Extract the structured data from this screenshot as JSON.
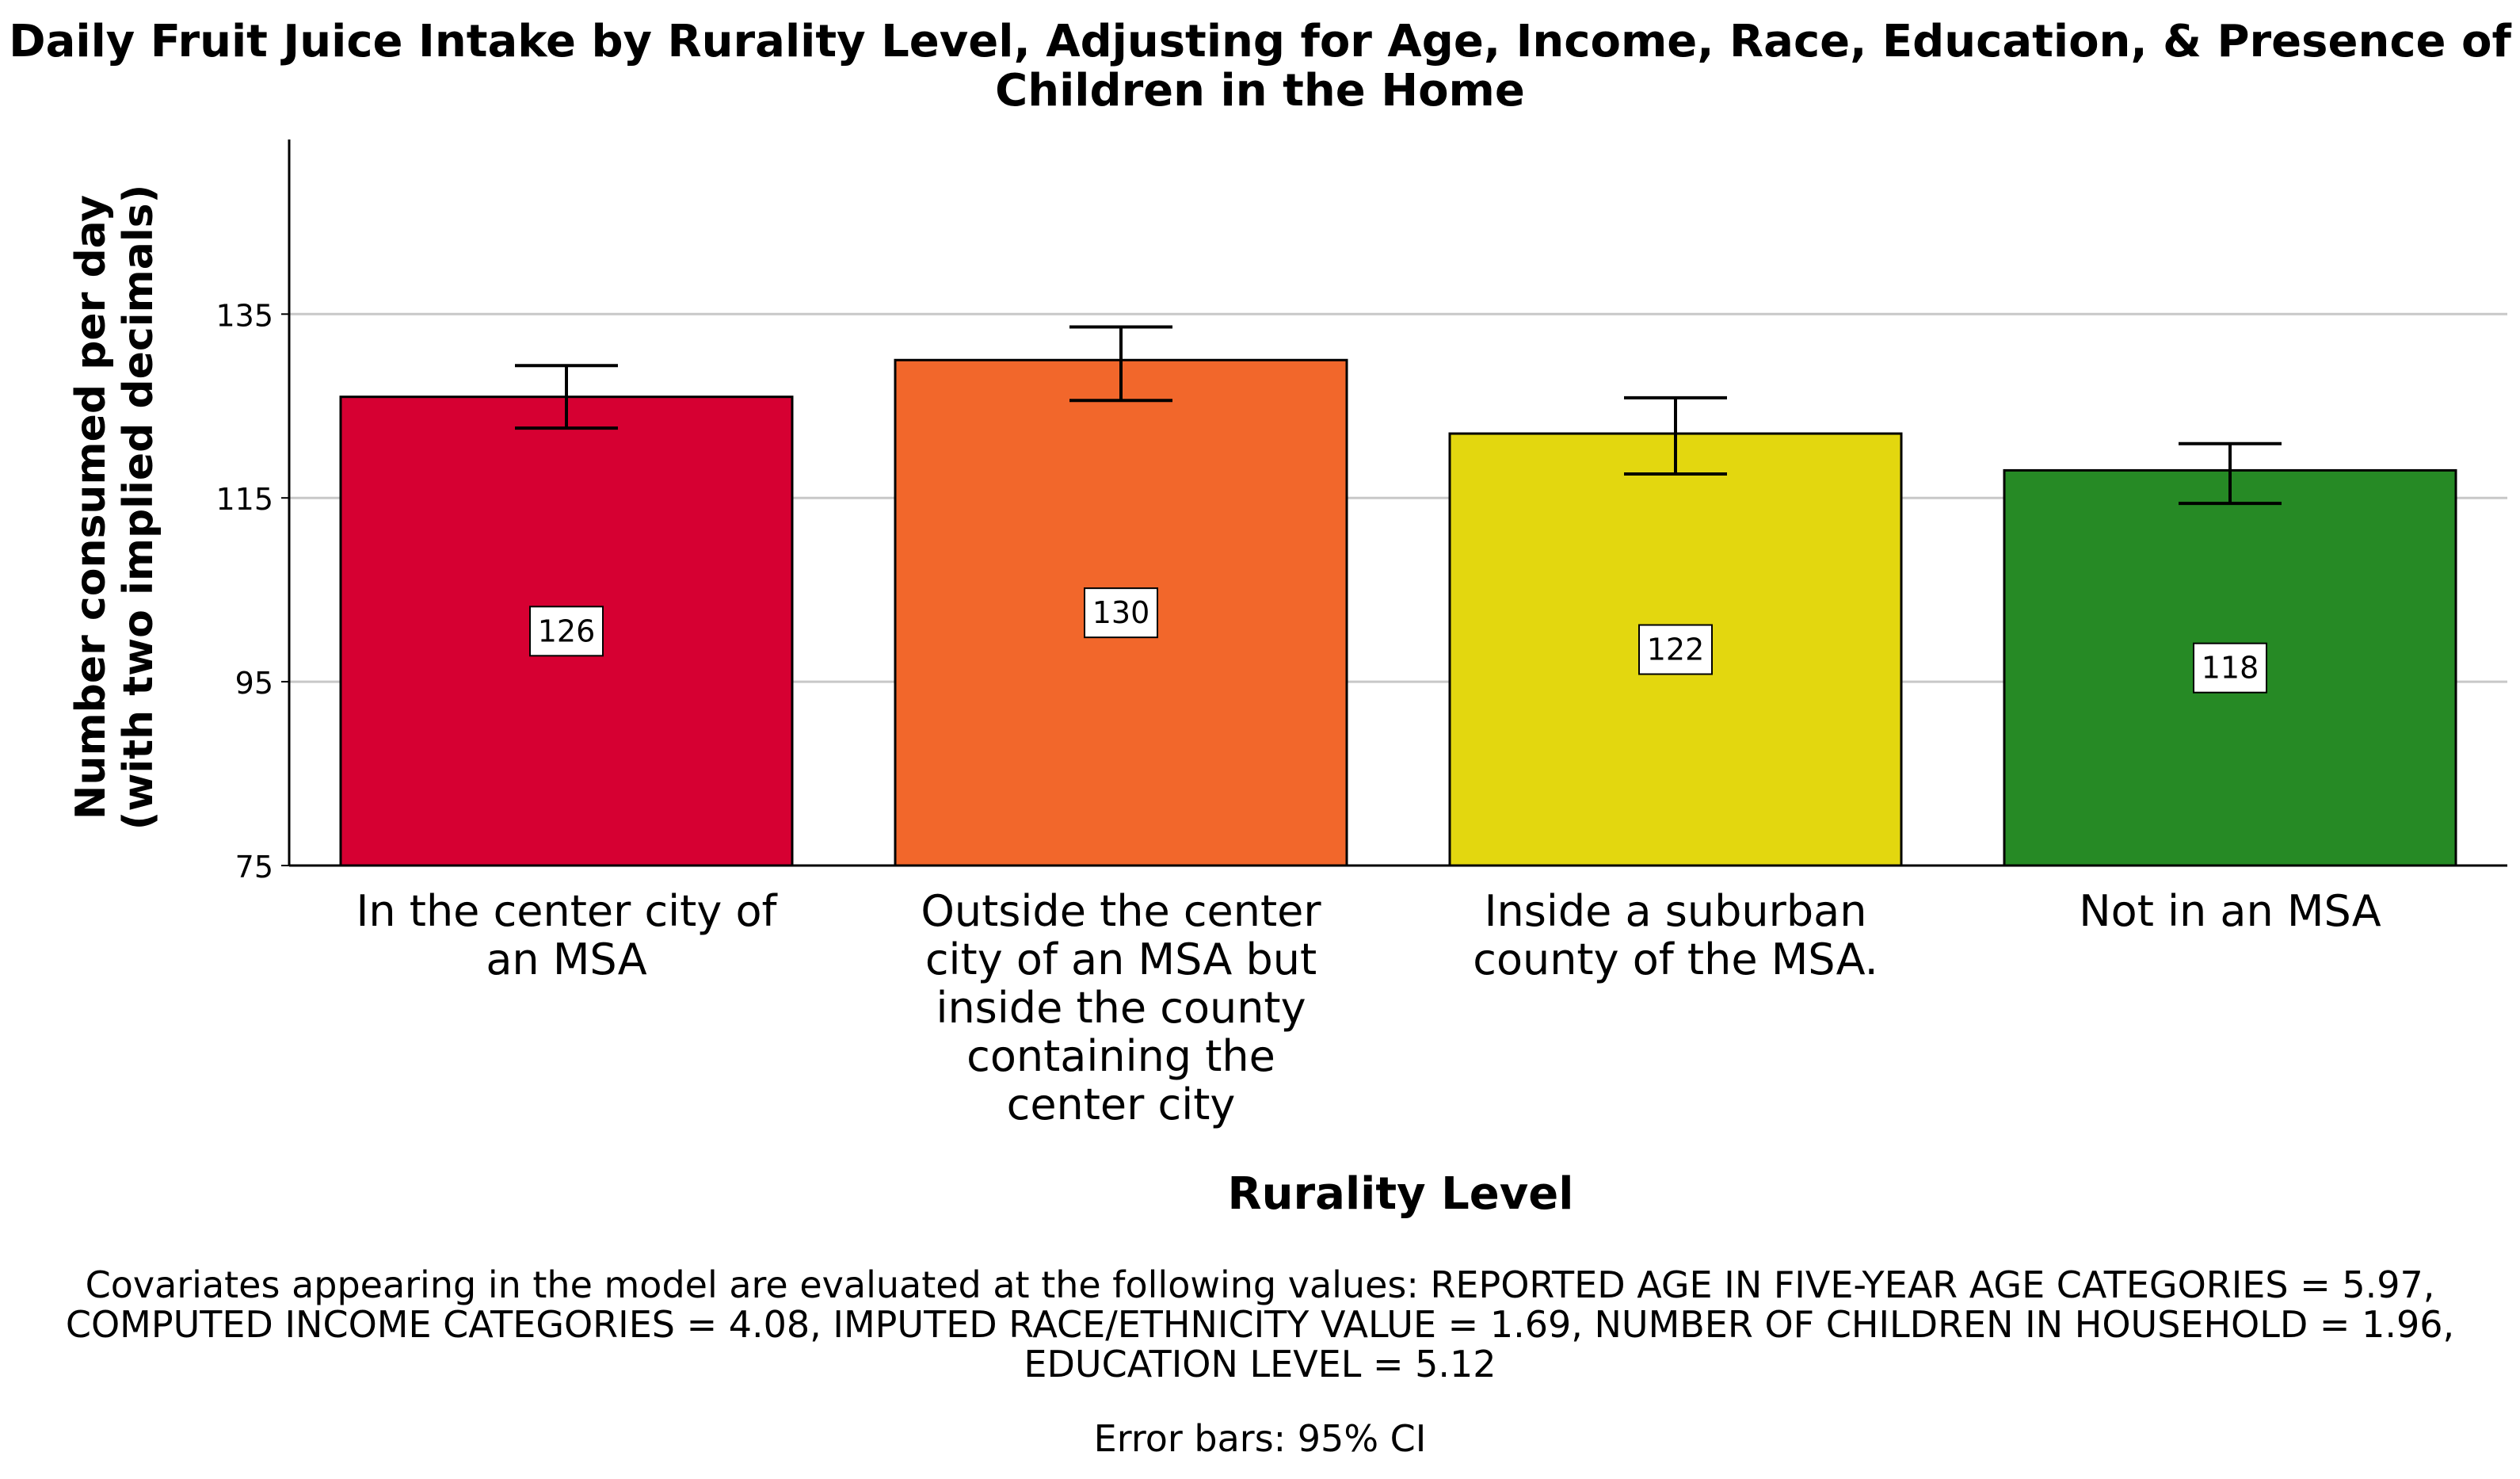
{
  "chart_data": {
    "type": "bar",
    "title_lines": [
      "Daily Fruit Juice Intake by Rurality Level, Adjusting for Age, Income, Race, Education, & Presence of",
      "Children in the Home"
    ],
    "ylabel_lines": [
      "Number consumed per day",
      "(with two implied decimals)"
    ],
    "xlabel": "Rurality Level",
    "ylim": [
      75,
      154
    ],
    "yticks": [
      75,
      95,
      115,
      135
    ],
    "grid": true,
    "categories": [
      [
        "In the center city of",
        "an MSA"
      ],
      [
        "Outside the center",
        "city of an MSA but",
        "inside the county",
        "containing the",
        "center city"
      ],
      [
        "Inside a suburban",
        "county of the MSA."
      ],
      [
        "Not in an MSA"
      ]
    ],
    "values": [
      126,
      130,
      122,
      118
    ],
    "value_labels": [
      "126",
      "130",
      "122",
      "118"
    ],
    "ci_lower": [
      122.6,
      125.6,
      117.6,
      114.4
    ],
    "ci_upper": [
      129.4,
      133.6,
      125.9,
      120.9
    ],
    "colors": [
      "#d60032",
      "#f2672b",
      "#e3d70f",
      "#268a25"
    ],
    "footnote_lines": [
      "Covariates appearing in the model are evaluated at the following values: REPORTED AGE IN FIVE-YEAR AGE CATEGORIES = 5.97,",
      "COMPUTED INCOME CATEGORIES = 4.08, IMPUTED RACE/ETHNICITY VALUE = 1.69, NUMBER OF CHILDREN IN HOUSEHOLD = 1.96,",
      "EDUCATION LEVEL = 5.12"
    ],
    "error_bar_note": "Error bars: 95% CI"
  }
}
